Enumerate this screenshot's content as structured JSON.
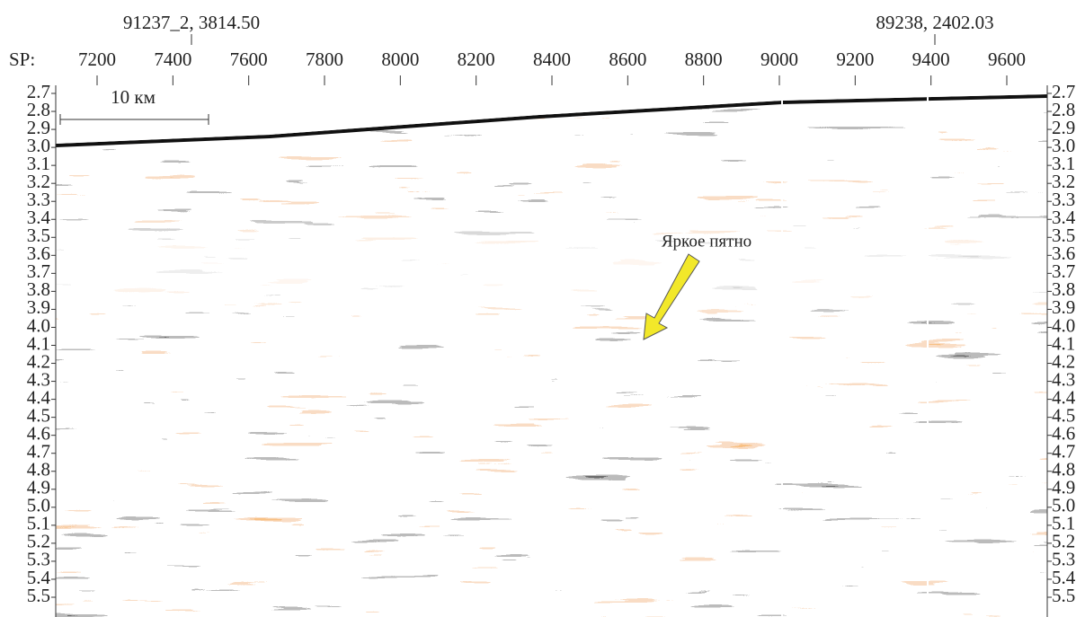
{
  "header": {
    "left_label": "91237_2, 3814.50",
    "right_label": "89238, 2402.03"
  },
  "sp_axis": {
    "label": "SP:",
    "ticks": [
      "7200",
      "7400",
      "7600",
      "7800",
      "8000",
      "8200",
      "8400",
      "8600",
      "8800",
      "9000",
      "9200",
      "9400",
      "9600"
    ]
  },
  "time_axis": {
    "ticks": [
      "2.7",
      "2.8",
      "2.9",
      "3.0",
      "3.1",
      "3.2",
      "3.3",
      "3.4",
      "3.5",
      "3.6",
      "3.7",
      "3.8",
      "3.9",
      "4.0",
      "4.1",
      "4.2",
      "4.3",
      "4.4",
      "4.5",
      "4.6",
      "4.7",
      "4.8",
      "4.9",
      "5.0",
      "5.1",
      "5.2",
      "5.3",
      "5.4",
      "5.5"
    ]
  },
  "scale_bar": {
    "label": "10 км"
  },
  "annotation": {
    "label": "Яркое пятно"
  }
}
